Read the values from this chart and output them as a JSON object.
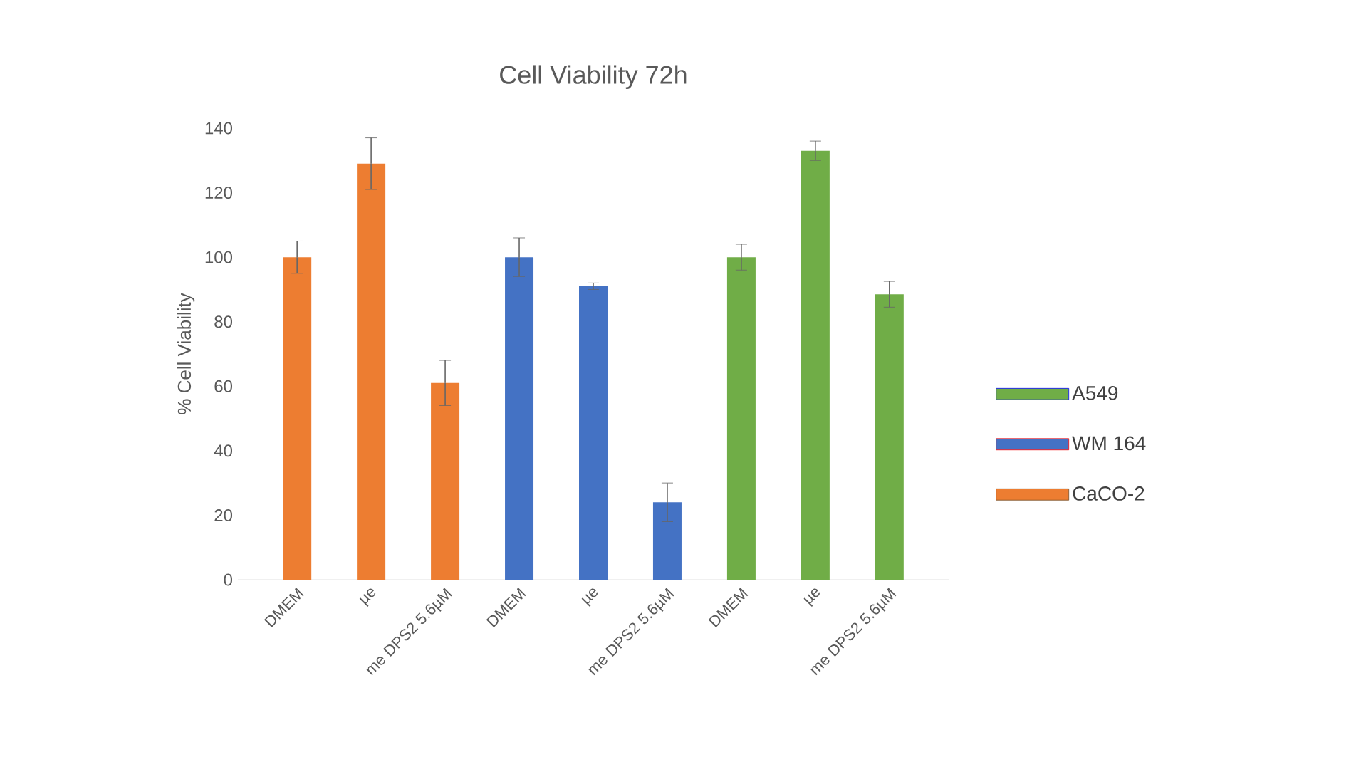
{
  "chart_data": {
    "type": "bar",
    "title": "Cell Viability 72h",
    "ylabel": "% Cell Viability",
    "categories": [
      "DMEM",
      "µe",
      "me DPS2 5.6µM",
      "DMEM",
      "µe",
      "me DPS2 5.6µM",
      "DMEM",
      "µe",
      "me DPS2 5.6µM"
    ],
    "series": [
      {
        "name": "A549",
        "color": "#70ad47",
        "values": [
          null,
          null,
          null,
          null,
          null,
          null,
          100,
          133,
          88.5
        ],
        "errors": [
          null,
          null,
          null,
          null,
          null,
          null,
          4,
          3,
          4
        ]
      },
      {
        "name": "WM 164",
        "color": "#4472c4",
        "values": [
          null,
          null,
          null,
          100,
          91,
          24,
          null,
          null,
          null
        ],
        "errors": [
          null,
          null,
          null,
          6,
          1,
          6,
          null,
          null,
          null
        ]
      },
      {
        "name": "CaCO-2",
        "color": "#ed7d31",
        "values": [
          100,
          129,
          61,
          null,
          null,
          null,
          null,
          null,
          null
        ],
        "errors": [
          5,
          8,
          7,
          null,
          null,
          null,
          null,
          null,
          null
        ]
      }
    ],
    "ylim": [
      0,
      140
    ],
    "yticks": [
      0,
      20,
      40,
      60,
      80,
      100,
      120,
      140
    ],
    "grid": false,
    "legend": "right"
  }
}
